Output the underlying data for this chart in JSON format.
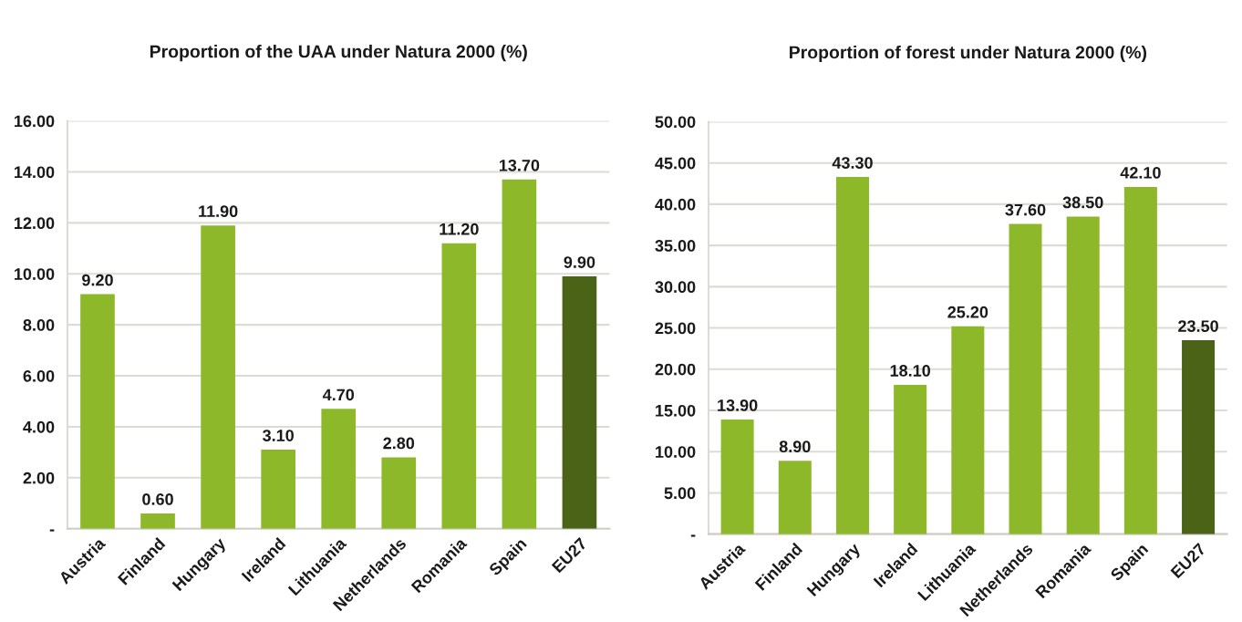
{
  "chart_data": [
    {
      "type": "bar",
      "title": "Proportion of the UAA under Natura 2000 (%)",
      "categories": [
        "Austria",
        "Finland",
        "Hungary",
        "Ireland",
        "Lithuania",
        "Netherlands",
        "Romania",
        "Spain",
        "EU27"
      ],
      "values": [
        9.2,
        0.6,
        11.9,
        3.1,
        4.7,
        2.8,
        11.2,
        13.7,
        9.9
      ],
      "value_labels": [
        "9.20",
        "0.60",
        "11.90",
        "3.10",
        "4.70",
        "2.80",
        "11.20",
        "13.70",
        "9.90"
      ],
      "colors": [
        "#8db829",
        "#8db829",
        "#8db829",
        "#8db829",
        "#8db829",
        "#8db829",
        "#8db829",
        "#8db829",
        "#4b6316"
      ],
      "ylim": [
        0,
        16
      ],
      "yticks": [
        {
          "value": 0,
          "label": "-"
        },
        {
          "value": 2,
          "label": "2.00"
        },
        {
          "value": 4,
          "label": "4.00"
        },
        {
          "value": 6,
          "label": "6.00"
        },
        {
          "value": 8,
          "label": "8.00"
        },
        {
          "value": 10,
          "label": "10.00"
        },
        {
          "value": 12,
          "label": "12.00"
        },
        {
          "value": 14,
          "label": "14.00"
        },
        {
          "value": 16,
          "label": "16.00"
        }
      ],
      "grid": "y"
    },
    {
      "type": "bar",
      "title": "Proportion of forest under Natura 2000 (%)",
      "categories": [
        "Austria",
        "Finland",
        "Hungary",
        "Ireland",
        "Lithuania",
        "Netherlands",
        "Romania",
        "Spain",
        "EU27"
      ],
      "values": [
        13.9,
        8.9,
        43.3,
        18.1,
        25.2,
        37.6,
        38.5,
        42.1,
        23.5
      ],
      "value_labels": [
        "13.90",
        "8.90",
        "43.30",
        "18.10",
        "25.20",
        "37.60",
        "38.50",
        "42.10",
        "23.50"
      ],
      "colors": [
        "#8db829",
        "#8db829",
        "#8db829",
        "#8db829",
        "#8db829",
        "#8db829",
        "#8db829",
        "#8db829",
        "#4b6316"
      ],
      "ylim": [
        0,
        50
      ],
      "yticks": [
        {
          "value": 0,
          "label": "-"
        },
        {
          "value": 5,
          "label": "5.00"
        },
        {
          "value": 10,
          "label": "10.00"
        },
        {
          "value": 15,
          "label": "15.00"
        },
        {
          "value": 20,
          "label": "20.00"
        },
        {
          "value": 25,
          "label": "25.00"
        },
        {
          "value": 30,
          "label": "30.00"
        },
        {
          "value": 35,
          "label": "35.00"
        },
        {
          "value": 40,
          "label": "40.00"
        },
        {
          "value": 45,
          "label": "45.00"
        },
        {
          "value": 50,
          "label": "50.00"
        }
      ],
      "grid": "y"
    }
  ]
}
